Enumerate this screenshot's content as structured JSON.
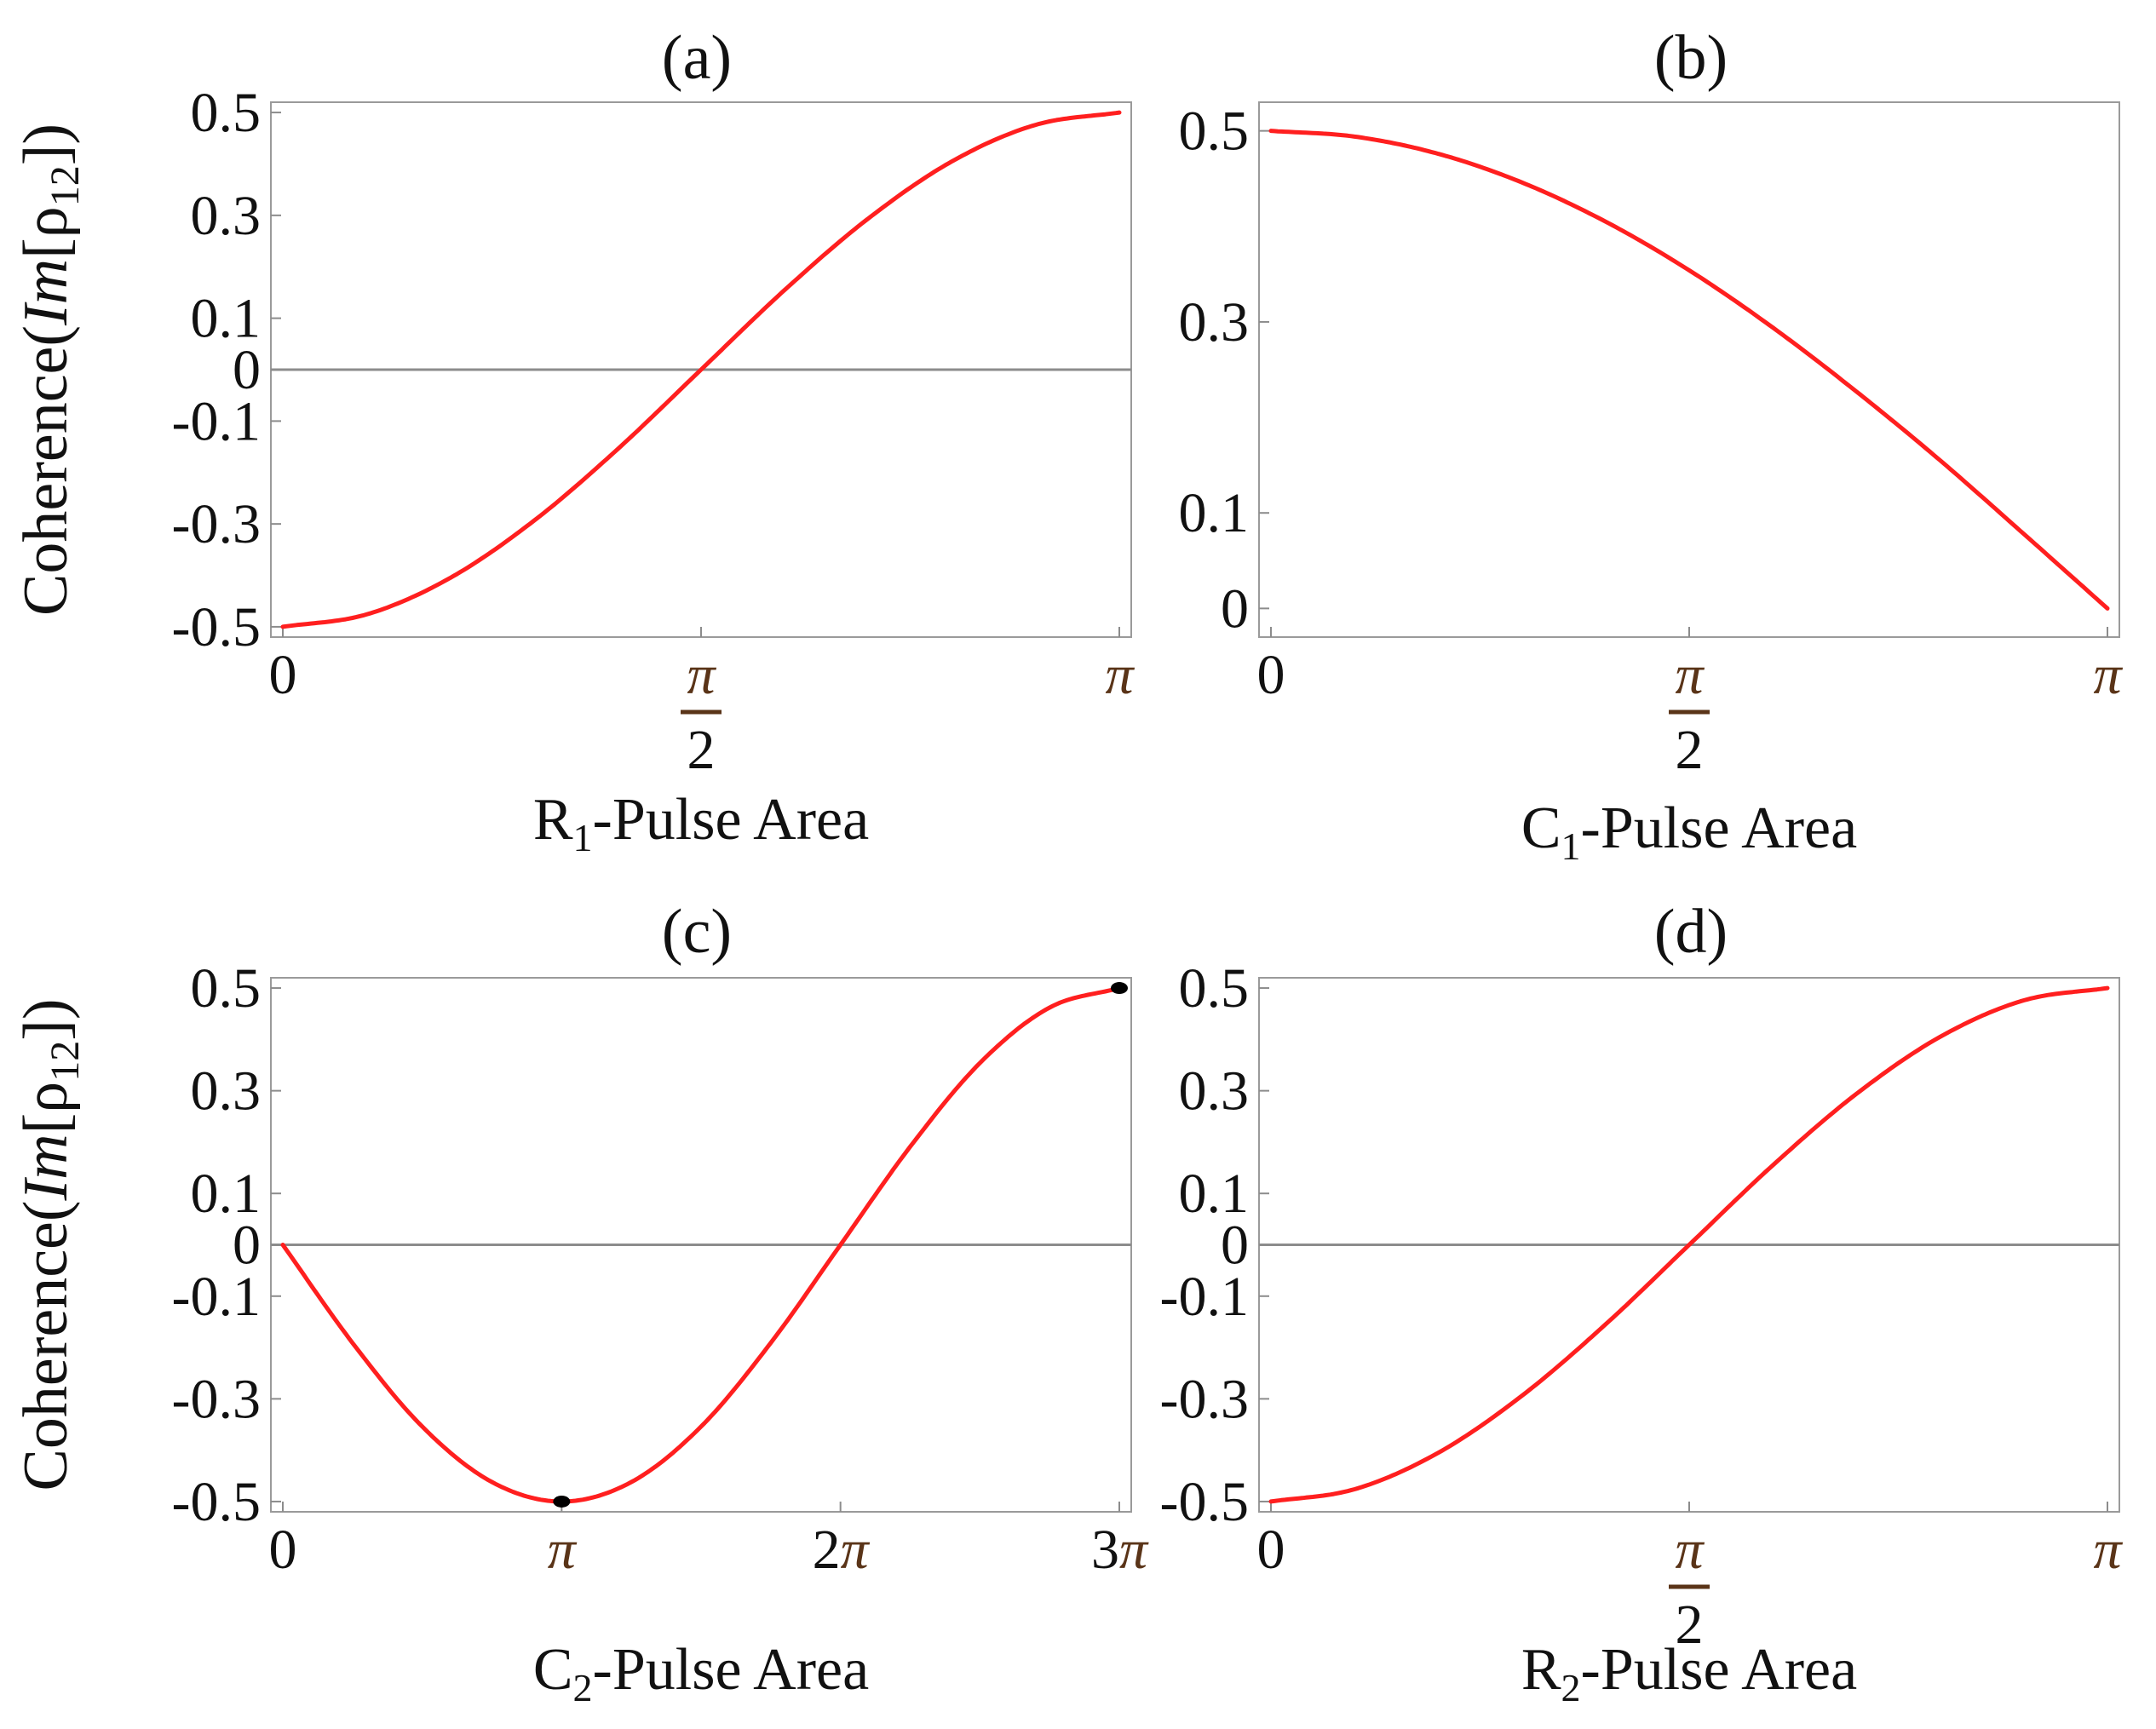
{
  "colors": {
    "curve": "#ff1f1f",
    "marker": "#000000"
  },
  "ylabel_parts": [
    "Coherence(",
    "Im",
    "[ρ",
    "12",
    "])"
  ],
  "chart_data": [
    {
      "type": "line",
      "title": "(a)",
      "xlabel": {
        "pre": "R",
        "sub": "1",
        "post": "-Pulse Area"
      },
      "xlim": [
        0,
        3.14159
      ],
      "ylim": [
        -0.52,
        0.52
      ],
      "zero_line": true,
      "x_ticks": [
        {
          "value": 0,
          "label": "0"
        },
        {
          "value": 1.5708,
          "label": "π/2"
        },
        {
          "value": 3.14159,
          "label": "π"
        }
      ],
      "y_ticks": [
        {
          "value": 0.5,
          "label": "0.5"
        },
        {
          "value": 0.3,
          "label": "0.3"
        },
        {
          "value": 0.1,
          "label": "0.1"
        },
        {
          "value": 0,
          "label": "0"
        },
        {
          "value": -0.1,
          "label": "-0.1"
        },
        {
          "value": -0.3,
          "label": "-0.3"
        },
        {
          "value": -0.5,
          "label": "-0.5"
        }
      ],
      "series": [
        {
          "x": [
            0,
            0.3142,
            0.6283,
            0.9425,
            1.2566,
            1.5708,
            1.885,
            2.1991,
            2.5133,
            2.8274,
            3.1416
          ],
          "y": [
            -0.5,
            -0.476,
            -0.405,
            -0.294,
            -0.155,
            0,
            0.155,
            0.294,
            0.405,
            0.476,
            0.5
          ]
        }
      ],
      "markers": []
    },
    {
      "type": "line",
      "title": "(b)",
      "xlabel": {
        "pre": "C",
        "sub": "1",
        "post": "-Pulse Area"
      },
      "xlim": [
        0,
        3.14159
      ],
      "ylim": [
        -0.03,
        0.53
      ],
      "zero_line": false,
      "x_ticks": [
        {
          "value": 0,
          "label": "0"
        },
        {
          "value": 1.5708,
          "label": "π/2"
        },
        {
          "value": 3.14159,
          "label": "π"
        }
      ],
      "y_ticks": [
        {
          "value": 0.5,
          "label": "0.5"
        },
        {
          "value": 0.3,
          "label": "0.3"
        },
        {
          "value": 0.1,
          "label": "0.1"
        },
        {
          "value": 0,
          "label": "0"
        }
      ],
      "series": [
        {
          "x": [
            0,
            0.3142,
            0.6283,
            0.9425,
            1.2566,
            1.5708,
            1.885,
            2.1991,
            2.5133,
            2.8274,
            3.1416
          ],
          "y": [
            0.5,
            0.494,
            0.476,
            0.446,
            0.405,
            0.354,
            0.294,
            0.227,
            0.155,
            0.078,
            0
          ]
        }
      ],
      "markers": []
    },
    {
      "type": "line",
      "title": "(c)",
      "xlabel": {
        "pre": "C",
        "sub": "2",
        "post": "-Pulse Area"
      },
      "xlim": [
        0,
        9.42478
      ],
      "ylim": [
        -0.52,
        0.52
      ],
      "zero_line": true,
      "x_ticks": [
        {
          "value": 0,
          "label": "0"
        },
        {
          "value": 3.14159,
          "label": "π"
        },
        {
          "value": 6.28319,
          "label": "2π"
        },
        {
          "value": 9.42478,
          "label": "3π"
        }
      ],
      "y_ticks": [
        {
          "value": 0.5,
          "label": "0.5"
        },
        {
          "value": 0.3,
          "label": "0.3"
        },
        {
          "value": 0.1,
          "label": "0.1"
        },
        {
          "value": 0,
          "label": "0"
        },
        {
          "value": -0.1,
          "label": "-0.1"
        },
        {
          "value": -0.3,
          "label": "-0.3"
        },
        {
          "value": -0.5,
          "label": "-0.5"
        }
      ],
      "series": [
        {
          "x": [
            0,
            0.7854,
            1.5708,
            2.3562,
            3.1416,
            3.927,
            4.7124,
            5.4978,
            6.2832,
            7.0686,
            7.854,
            8.6394,
            9.4248
          ],
          "y": [
            0,
            -0.191,
            -0.354,
            -0.462,
            -0.5,
            -0.462,
            -0.354,
            -0.191,
            0,
            0.191,
            0.354,
            0.462,
            0.5
          ]
        }
      ],
      "markers": [
        {
          "x": 3.14159,
          "y": -0.5
        },
        {
          "x": 9.42478,
          "y": 0.5
        }
      ]
    },
    {
      "type": "line",
      "title": "(d)",
      "xlabel": {
        "pre": "R",
        "sub": "2",
        "post": "-Pulse Area"
      },
      "xlim": [
        0,
        3.14159
      ],
      "ylim": [
        -0.52,
        0.52
      ],
      "zero_line": true,
      "x_ticks": [
        {
          "value": 0,
          "label": "0"
        },
        {
          "value": 1.5708,
          "label": "π/2"
        },
        {
          "value": 3.14159,
          "label": "π"
        }
      ],
      "y_ticks": [
        {
          "value": 0.5,
          "label": "0.5"
        },
        {
          "value": 0.3,
          "label": "0.3"
        },
        {
          "value": 0.1,
          "label": "0.1"
        },
        {
          "value": 0,
          "label": "0"
        },
        {
          "value": -0.1,
          "label": "-0.1"
        },
        {
          "value": -0.3,
          "label": "-0.3"
        },
        {
          "value": -0.5,
          "label": "-0.5"
        }
      ],
      "series": [
        {
          "x": [
            0,
            0.3142,
            0.6283,
            0.9425,
            1.2566,
            1.5708,
            1.885,
            2.1991,
            2.5133,
            2.8274,
            3.1416
          ],
          "y": [
            -0.5,
            -0.476,
            -0.405,
            -0.294,
            -0.155,
            0,
            0.155,
            0.294,
            0.405,
            0.476,
            0.5
          ]
        }
      ],
      "markers": []
    }
  ]
}
